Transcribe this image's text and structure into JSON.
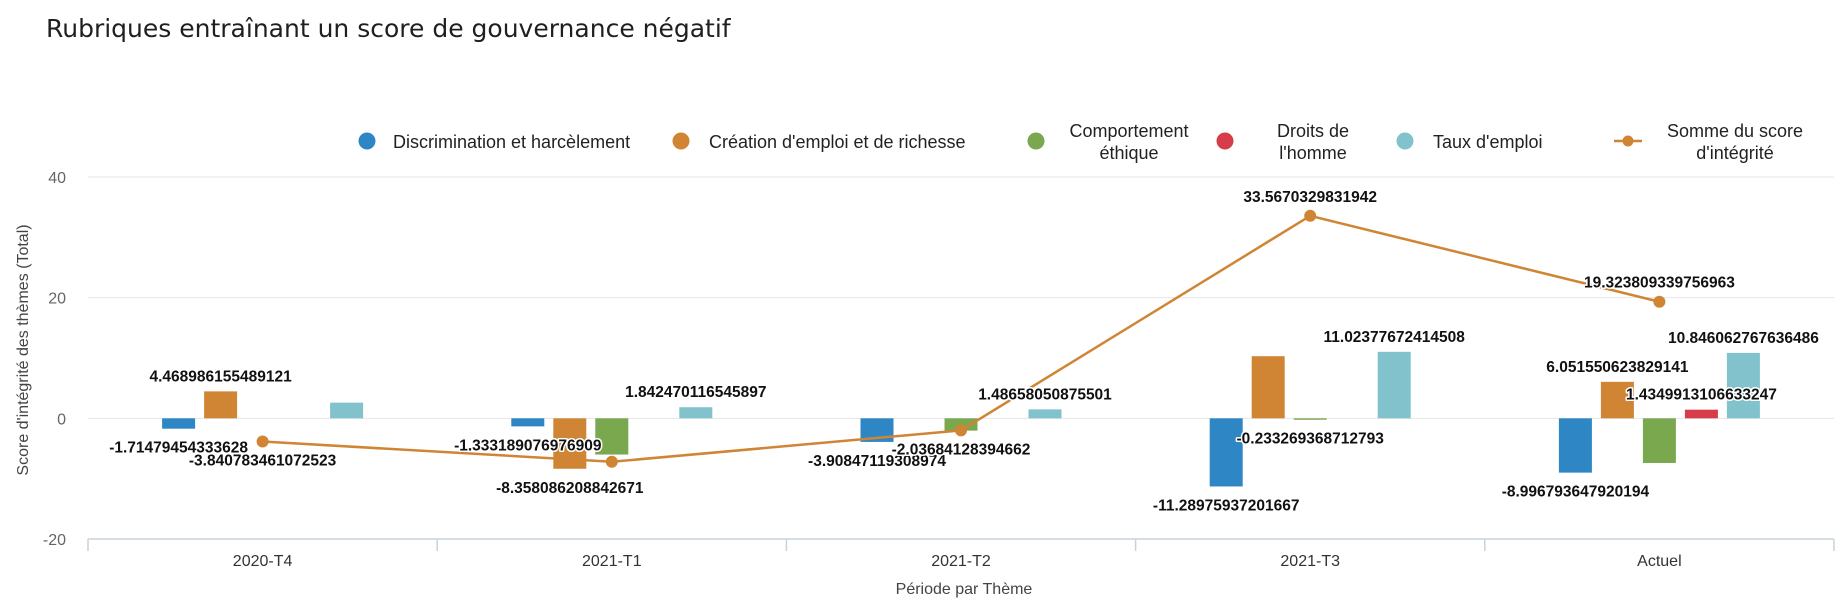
{
  "chart_data": {
    "type": "bar",
    "title": "Rubriques entraînant un score de gouvernance négatif",
    "xlabel": "Période par Thème",
    "ylabel": "Score d'intégrité des thèmes (Total)",
    "ylim": [
      -20,
      40
    ],
    "yticks": [
      -20,
      0,
      20,
      40
    ],
    "categories": [
      "2020-T4",
      "2021-T1",
      "2021-T2",
      "2021-T3",
      "Actuel"
    ],
    "legend_position": "top",
    "series": [
      {
        "name": "Discrimination et harcèlement",
        "type": "bar",
        "color": "#2e86c4",
        "values": [
          -1.71479454333628,
          -1.333189076976909,
          -3.90847119308974,
          -11.28975937201667,
          -8.996793647920194
        ],
        "labels": [
          "-1.71479454333628",
          "-1.333189076976909",
          "-3.90847119308974",
          "-11.28975937201667",
          "-8.996793647920194"
        ]
      },
      {
        "name": "Création d'emploi et de richesse",
        "type": "bar",
        "color": "#d08535",
        "values": [
          4.468986155489121,
          -8.358086208842671,
          null,
          10.3,
          6.051550623829141
        ],
        "labels": [
          "4.468986155489121",
          "-8.358086208842671",
          "",
          "",
          "6.051550623829141"
        ]
      },
      {
        "name": "Comportement éthique",
        "type": "bar",
        "color": "#7aa84f",
        "values": [
          null,
          -6.0,
          -2.03684128394662,
          -0.233269368712793,
          -7.4
        ],
        "labels": [
          "",
          "",
          "-2.03684128394662",
          "-0.233269368712793",
          ""
        ]
      },
      {
        "name": "Droits de l'homme",
        "type": "bar",
        "color": "#d63c4a",
        "values": [
          null,
          null,
          null,
          null,
          1.434991310663324
        ],
        "labels": [
          "",
          "",
          "",
          "",
          "1.4349913106633247"
        ]
      },
      {
        "name": "Taux d'emploi",
        "type": "bar",
        "color": "#82c2cc",
        "values": [
          2.6,
          1.842470116545897,
          1.48658050875501,
          11.02377672414508,
          10.846062767636486
        ],
        "labels": [
          "",
          "1.842470116545897",
          "1.48658050875501",
          "11.02377672414508",
          "10.846062767636486"
        ]
      },
      {
        "name": "Somme du score d'intégrité",
        "type": "line",
        "color": "#d08535",
        "values": [
          -3.840783461072523,
          -7.2,
          -2.0,
          33.5670329831942,
          19.323809339756963
        ],
        "labels": [
          "-3.840783461072523",
          "",
          "",
          "33.5670329831942",
          "19.323809339756963"
        ]
      }
    ]
  },
  "legend": [
    {
      "lines": [
        "Discrimination et harcèlement"
      ],
      "shape": "circle",
      "color": "#2e86c4"
    },
    {
      "lines": [
        "Création d'emploi et de richesse"
      ],
      "shape": "circle",
      "color": "#d08535"
    },
    {
      "lines": [
        "Comportement",
        "éthique"
      ],
      "shape": "circle",
      "color": "#7aa84f"
    },
    {
      "lines": [
        "Droits de",
        "l'homme"
      ],
      "shape": "circle",
      "color": "#d63c4a"
    },
    {
      "lines": [
        "Taux d'emploi"
      ],
      "shape": "circle",
      "color": "#82c2cc"
    },
    {
      "lines": [
        "Somme du score",
        "d'intégrité"
      ],
      "shape": "line",
      "color": "#d08535"
    }
  ]
}
